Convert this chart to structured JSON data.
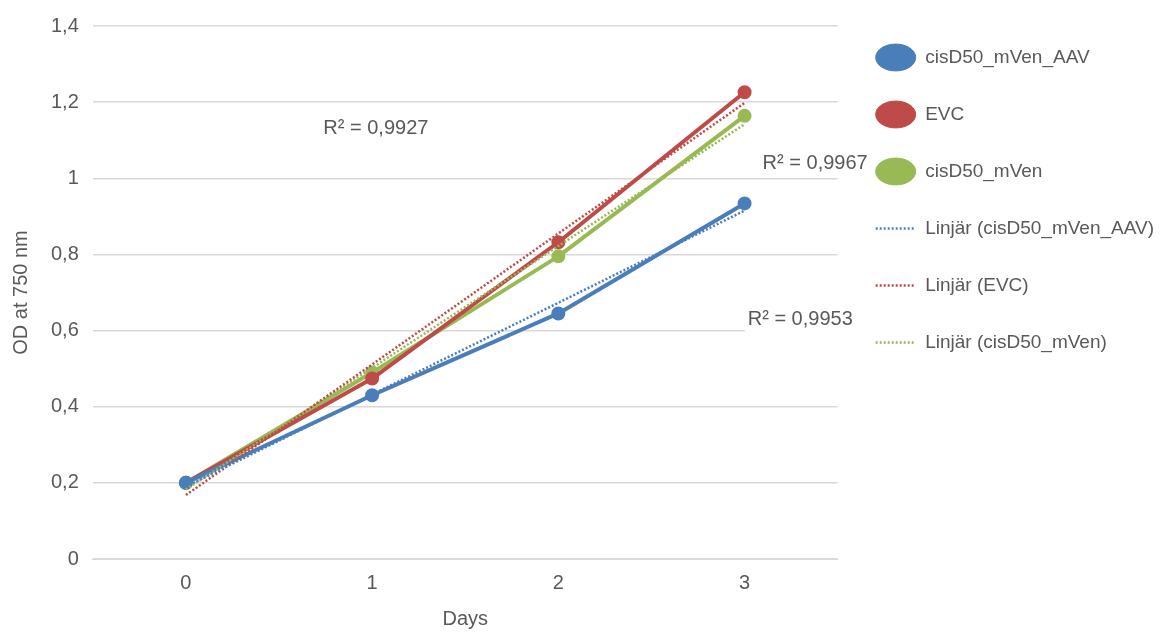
{
  "chart_data": {
    "type": "line",
    "xlabel": "Days",
    "ylabel": "OD at 750 nm",
    "categories": [
      "0",
      "1",
      "2",
      "3"
    ],
    "ylim": [
      0,
      1.4
    ],
    "yticks": [
      {
        "value": 0,
        "label": "0"
      },
      {
        "value": 0.2,
        "label": "0,2"
      },
      {
        "value": 0.4,
        "label": "0,4"
      },
      {
        "value": 0.6,
        "label": "0,6"
      },
      {
        "value": 0.8,
        "label": "0,8"
      },
      {
        "value": 1,
        "label": "1"
      },
      {
        "value": 1.2,
        "label": "1,2"
      },
      {
        "value": 1.4,
        "label": "1,4"
      }
    ],
    "grid": "y",
    "legend": "right",
    "marker": "circle",
    "line_style": "solid",
    "series": [
      {
        "name": "cisD50_mVen_AAV",
        "color": "#4a7ebb",
        "values": [
          0.2,
          0.43,
          0.645,
          0.934
        ]
      },
      {
        "name": "EVC",
        "color": "#be4b48",
        "values": [
          0.2,
          0.474,
          0.832,
          1.226
        ]
      },
      {
        "name": "cisD50_mVen",
        "color": "#98b954",
        "values": [
          0.2,
          0.49,
          0.795,
          1.164
        ]
      },
      {
        "name": "Linjär (cisD50_mVen_AAV)",
        "color": "#4a7ebb",
        "values": [
          0.19,
          0.432,
          0.673,
          0.915
        ],
        "marker": "none",
        "line_style": "dotted"
      },
      {
        "name": "Linjär (EVC)",
        "color": "#be4b48",
        "values": [
          0.168,
          0.511,
          0.855,
          1.198
        ],
        "marker": "none",
        "line_style": "dotted"
      },
      {
        "name": "Linjär (cisD50_mVen)",
        "color": "#98b954",
        "values": [
          0.183,
          0.502,
          0.822,
          1.142
        ],
        "marker": "none",
        "line_style": "dotted"
      }
    ],
    "annotations": [
      "R² = 0,9927",
      "R² = 0,9967",
      "R² = 0,9953"
    ]
  }
}
